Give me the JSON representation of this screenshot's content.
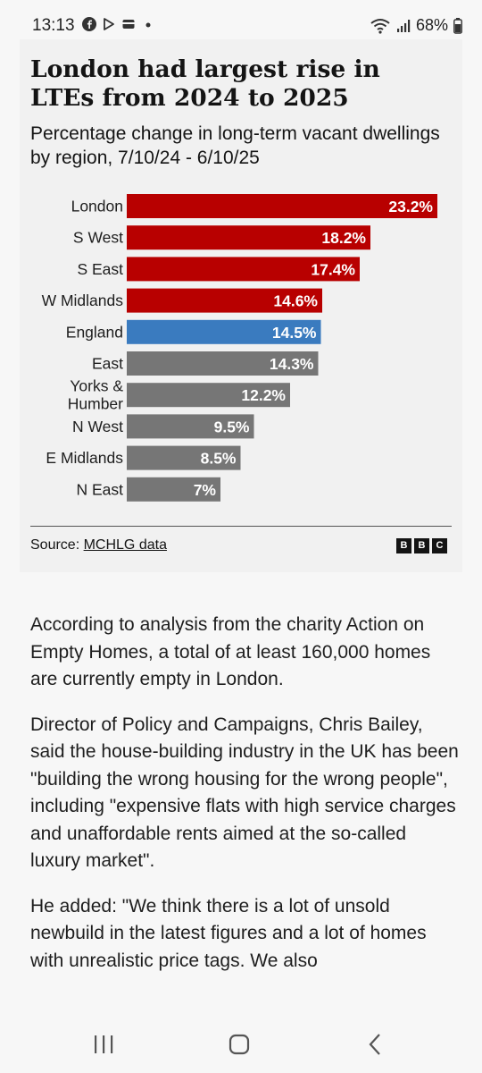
{
  "status_bar": {
    "time": "13:13",
    "battery": "68%",
    "notification_icons": [
      "facebook-icon",
      "play-icon",
      "wallet-icon",
      "dot-icon"
    ]
  },
  "chart": {
    "title": "London had largest rise in LTEs from 2024 to 2025",
    "subtitle": "Percentage change in long-term vacant dwellings by region, 7/10/24 - 6/10/25",
    "source_prefix": "Source: ",
    "source_link": "MCHLG data",
    "logo": [
      "B",
      "B",
      "C"
    ]
  },
  "chart_data": {
    "type": "bar",
    "orientation": "horizontal",
    "title": "London had largest rise in LTEs from 2024 to 2025",
    "subtitle": "Percentage change in long-term vacant dwellings by region, 7/10/24 - 6/10/25",
    "categories": [
      [
        "London"
      ],
      [
        "S West"
      ],
      [
        "S East"
      ],
      [
        "W Midlands"
      ],
      [
        "England"
      ],
      [
        "East"
      ],
      [
        "Yorks &",
        "Humber"
      ],
      [
        "N West"
      ],
      [
        "E Midlands"
      ],
      [
        "N East"
      ]
    ],
    "values": [
      23.2,
      18.2,
      17.4,
      14.6,
      14.5,
      14.3,
      12.2,
      9.5,
      8.5,
      7
    ],
    "value_labels": [
      "23.2%",
      "18.2%",
      "17.4%",
      "14.6%",
      "14.5%",
      "14.3%",
      "12.2%",
      "9.5%",
      "8.5%",
      "7%"
    ],
    "bar_colors": [
      "#b80000",
      "#b80000",
      "#b80000",
      "#b80000",
      "#3a7bbf",
      "#767676",
      "#767676",
      "#767676",
      "#767676",
      "#767676"
    ],
    "xlim": [
      0,
      23.2
    ],
    "grid": false,
    "legend": "none"
  },
  "article": {
    "paragraphs": [
      "According to analysis from the charity Action on Empty Homes, a total of at least 160,000 homes are currently empty in London.",
      "Director of Policy and Campaigns, Chris Bailey, said the house-building industry in the UK has been \"building the wrong housing for the wrong people\", including \"expensive flats with high service charges and unaffordable rents aimed at the so-called luxury market\".",
      "He added: \"We think there is a lot of unsold newbuild in the latest figures and a lot of homes with unrealistic price tags. We also"
    ]
  },
  "nav": {
    "buttons": [
      "recent-apps",
      "home",
      "back"
    ]
  }
}
